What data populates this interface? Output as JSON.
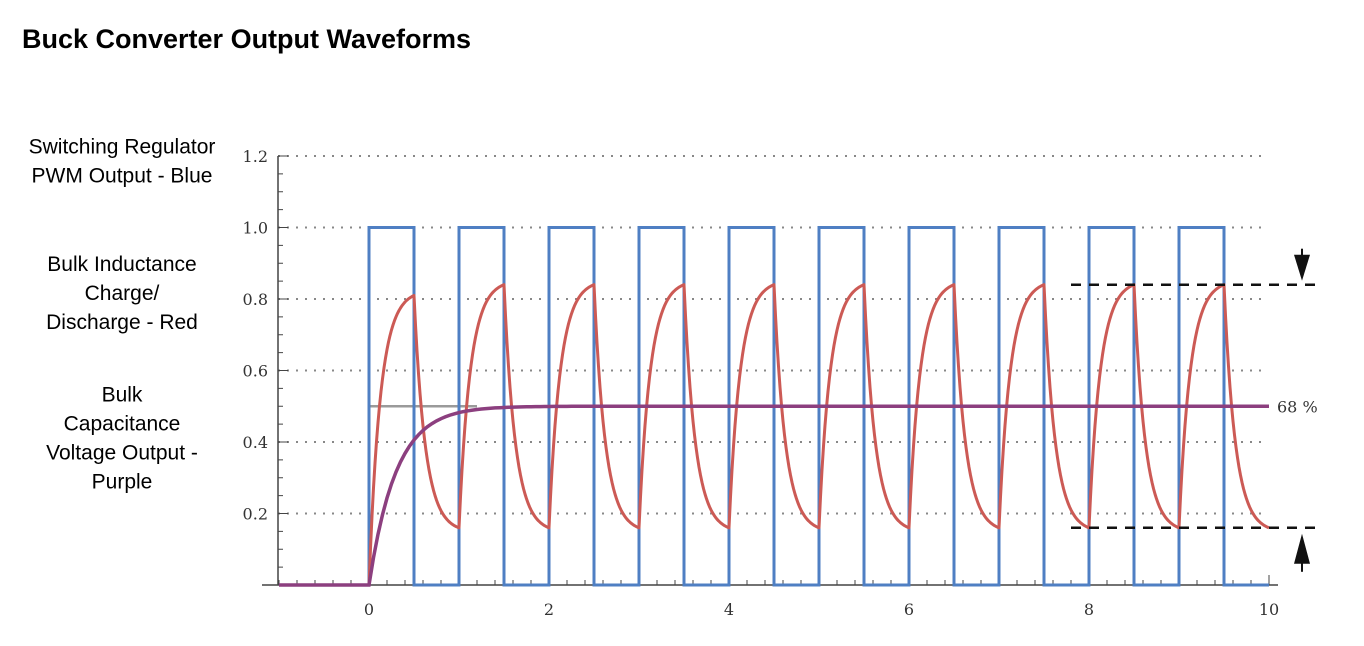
{
  "chart_data": {
    "type": "line",
    "title": "Buck Converter Output Waveforms",
    "xlabel": "",
    "ylabel": "",
    "xlim": [
      -1,
      10
    ],
    "ylim": [
      0,
      1.2
    ],
    "x_ticks": [
      "0",
      "2",
      "4",
      "6",
      "8",
      "10"
    ],
    "y_ticks": [
      "0.2",
      "0.4",
      "0.6",
      "0.8",
      "1.0",
      "1.2"
    ],
    "grid": "dotted horizontal",
    "legend_labels": [
      [
        "Switching Regulator",
        "PWM Output - Blue"
      ],
      [
        "Bulk Inductance",
        "Charge/",
        "Discharge - Red"
      ],
      [
        "Bulk",
        "Capacitance",
        "Voltage Output -",
        "Purple"
      ]
    ],
    "series": [
      {
        "color": "#4f7fc3",
        "kind": "square wave",
        "high": 1.0,
        "low": 0.0,
        "start": 0,
        "period": 1,
        "duty": 0.5,
        "end": 10
      },
      {
        "color": "#cc5a55",
        "kind": "rc ripple",
        "peaks": [
          0.81,
          0.84,
          0.84,
          0.84,
          0.84,
          0.84,
          0.84,
          0.84,
          0.84,
          0.84
        ],
        "troughs": [
          0.16,
          0.16,
          0.16,
          0.16,
          0.16,
          0.16,
          0.16,
          0.16,
          0.16,
          0.16
        ],
        "start": 0,
        "period": 1,
        "end": 10
      },
      {
        "color": "#8c3f7f",
        "kind": "step response",
        "final_value": 0.5,
        "tau": 0.3,
        "start": 0,
        "end": 10
      },
      {
        "color": "#9a9a9a",
        "kind": "reference step",
        "value": 0.5,
        "start": 0,
        "end": 1.2
      }
    ],
    "annotations": {
      "ripple_label": "68 %",
      "ripple_label_y": 0.5,
      "upper_marker_y": 0.84,
      "lower_marker_y": 0.16
    }
  }
}
